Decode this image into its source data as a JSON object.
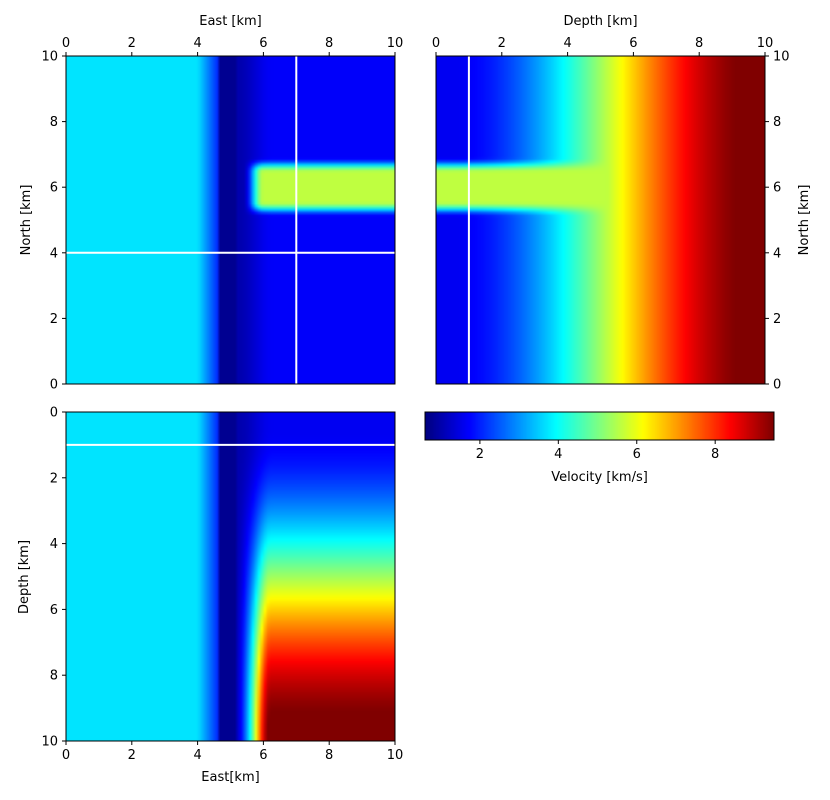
{
  "chart_data": [
    {
      "type": "heatmap",
      "panel": "map-view",
      "xlabel": "East [km]",
      "ylabel": "North [km]",
      "xlim": [
        0,
        10
      ],
      "ylim": [
        0,
        10
      ],
      "xticks": [
        "0",
        "2",
        "4",
        "6",
        "8",
        "10"
      ],
      "yticks": [
        "0",
        "2",
        "4",
        "6",
        "8",
        "10"
      ],
      "x_axis_position": "top",
      "y_axis_position": "left",
      "crosshair": {
        "north": 4,
        "east": 7
      }
    },
    {
      "type": "heatmap",
      "panel": "north-depth-section",
      "xlabel": "Depth [km]",
      "ylabel": "North [km]",
      "xlim": [
        0,
        10
      ],
      "ylim": [
        0,
        10
      ],
      "xticks": [
        "0",
        "2",
        "4",
        "6",
        "8",
        "10"
      ],
      "yticks": [
        "0",
        "2",
        "4",
        "6",
        "8",
        "10"
      ],
      "x_axis_position": "top",
      "y_axis_position": "right",
      "crosshair": {
        "depth": 1
      }
    },
    {
      "type": "heatmap",
      "panel": "east-depth-section",
      "xlabel": "East[km]",
      "ylabel": "Depth [km]",
      "xlim": [
        0,
        10
      ],
      "ylim": [
        10,
        0
      ],
      "xticks": [
        "0",
        "2",
        "4",
        "6",
        "8",
        "10"
      ],
      "yticks": [
        "0",
        "2",
        "4",
        "6",
        "8",
        "10"
      ],
      "x_axis_position": "bottom",
      "y_axis_position": "left",
      "crosshair": {
        "depth": 1
      }
    }
  ],
  "colorbar": {
    "label": "Velocity [km/s]",
    "colormap": "jet",
    "range": [
      0.6,
      9.5
    ],
    "ticks": [
      "2",
      "4",
      "6",
      "8"
    ]
  },
  "colors": {
    "crosshair": "#ffffff",
    "frame": "#000000"
  }
}
